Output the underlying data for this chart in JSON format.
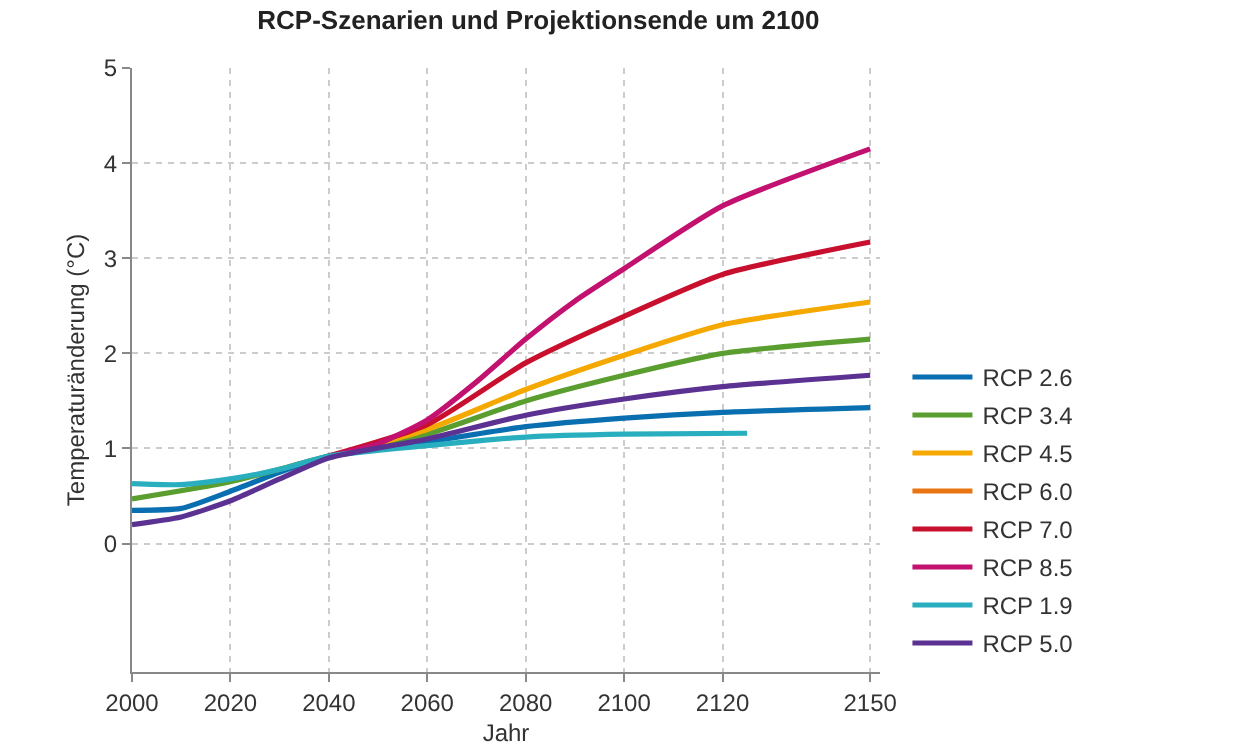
{
  "chart_data": {
    "type": "line",
    "title": "RCP-Szenarien und Projektionsende um 2100",
    "xlabel": "Jahr",
    "ylabel": "Temperaturänderung (°C)",
    "xlim": [
      2000,
      2152
    ],
    "xticks": [
      2000,
      2020,
      2040,
      2060,
      2080,
      2100,
      2120,
      2150
    ],
    "ylim": [
      -1.35,
      5
    ],
    "yticks": [
      0,
      1,
      2,
      3,
      4,
      5
    ],
    "grid": true,
    "legend": "bottom right",
    "series": [
      {
        "name": "RCP 2.6",
        "color": "#0a6fb0",
        "x": [
          2000,
          2010,
          2020,
          2030,
          2040,
          2060,
          2080,
          2100,
          2120,
          2150
        ],
        "values": [
          0.35,
          0.37,
          0.55,
          0.75,
          0.92,
          1.07,
          1.23,
          1.32,
          1.38,
          1.43
        ]
      },
      {
        "name": "RCP 3.4",
        "color": "#5a9e2f",
        "x": [
          2000,
          2020,
          2040,
          2060,
          2080,
          2100,
          2120,
          2150
        ],
        "values": [
          0.47,
          0.65,
          0.92,
          1.15,
          1.5,
          1.77,
          2.0,
          2.15
        ]
      },
      {
        "name": "RCP 4.5",
        "color": "#f5a800",
        "x": [
          2040,
          2060,
          2080,
          2100,
          2120,
          2150
        ],
        "values": [
          0.92,
          1.2,
          1.62,
          1.98,
          2.3,
          2.54
        ]
      },
      {
        "name": "RCP 6.0",
        "color": "#e87511"
      },
      {
        "name": "RCP 7.0",
        "color": "#c8102e",
        "x": [
          2040,
          2060,
          2080,
          2100,
          2120,
          2150
        ],
        "values": [
          0.92,
          1.25,
          1.9,
          2.39,
          2.83,
          3.17
        ]
      },
      {
        "name": "RCP 8.5",
        "color": "#c2116f",
        "x": [
          2040,
          2050,
          2060,
          2070,
          2080,
          2090,
          2100,
          2120,
          2150
        ],
        "values": [
          0.92,
          1.05,
          1.3,
          1.7,
          2.15,
          2.55,
          2.89,
          3.55,
          4.15
        ]
      },
      {
        "name": "RCP 1.9",
        "color": "#29aebf",
        "x": [
          2000,
          2010,
          2020,
          2030,
          2040,
          2060,
          2080,
          2100,
          2125
        ],
        "values": [
          0.63,
          0.62,
          0.68,
          0.78,
          0.92,
          1.03,
          1.12,
          1.15,
          1.16
        ]
      },
      {
        "name": "RCP 5.0",
        "color": "#5b3291",
        "x": [
          2000,
          2010,
          2020,
          2030,
          2040,
          2060,
          2080,
          2100,
          2120,
          2150
        ],
        "values": [
          0.2,
          0.28,
          0.45,
          0.68,
          0.9,
          1.1,
          1.35,
          1.52,
          1.65,
          1.77
        ]
      }
    ]
  }
}
